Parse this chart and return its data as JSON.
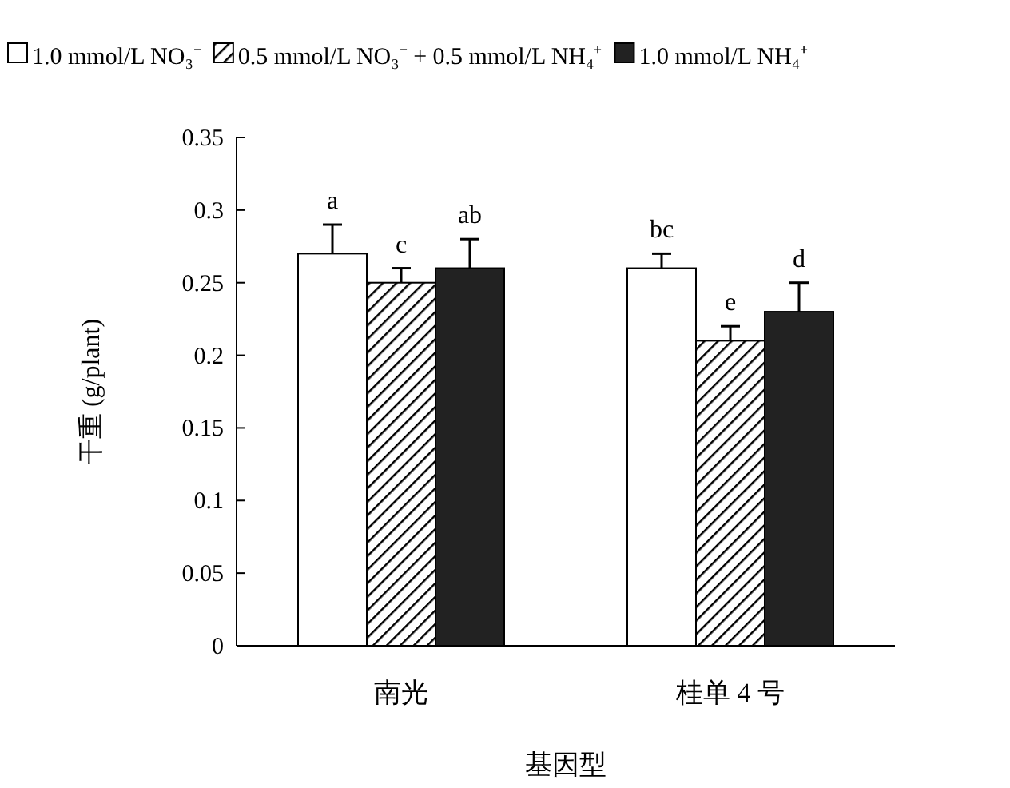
{
  "chart_data": {
    "type": "bar",
    "xlabel": "基因型",
    "ylabel": "干重 (g/plant)",
    "categories": [
      "南光",
      "桂单 4 号"
    ],
    "series": [
      {
        "name": "1.0 mmol/L NO₃⁻",
        "color": "#ffffff",
        "values": [
          0.27,
          0.26
        ],
        "errors": [
          [
            0.27,
            0.29
          ],
          [
            0.26,
            0.27
          ]
        ],
        "value_labels": [
          "a",
          "bc"
        ]
      },
      {
        "name": "0.5 mmol/L NO₃⁻ + 0.5 mmol/L NH₄⁺",
        "color": "#000000",
        "values": [
          0.25,
          0.21
        ],
        "errors": [
          [
            0.25,
            0.26
          ],
          [
            0.21,
            0.22
          ]
        ],
        "value_labels": [
          "c",
          "e"
        ]
      },
      {
        "name": "1.0 mmol/L NH₄⁺",
        "color": "#222222",
        "values": [
          0.26,
          0.23
        ],
        "errors": [
          [
            0.26,
            0.28
          ],
          [
            0.23,
            0.25
          ]
        ],
        "value_labels": [
          "ab",
          "d"
        ]
      }
    ],
    "ylim": [
      0,
      0.35
    ],
    "yticks": [
      0,
      0.05,
      0.1,
      0.15,
      0.2,
      0.25,
      0.3,
      0.35
    ],
    "legend": "top",
    "grid": false
  }
}
